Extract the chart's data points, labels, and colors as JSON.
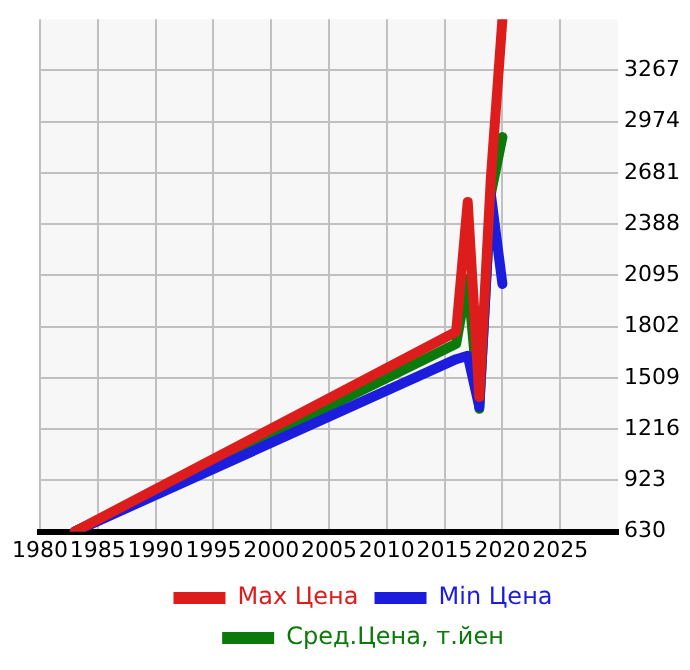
{
  "chart_data": {
    "type": "line",
    "x": [
      1983,
      2016,
      2017,
      2018,
      2019,
      2020
    ],
    "series": [
      {
        "name": "Max Цена",
        "color": "#dd1c1c",
        "values": [
          630,
          1773,
          2515,
          1400,
          2650,
          3560
        ]
      },
      {
        "name": "Min Цена",
        "color": "#1c1cdd",
        "values": [
          630,
          1616,
          1636,
          1343,
          2560,
          2046
        ]
      },
      {
        "name": "Сред.Цена, т.йен",
        "color": "#0b7a0b",
        "values": [
          630,
          1704,
          2076,
          1333,
          2560,
          2886
        ]
      }
    ],
    "xlim": [
      1980,
      2030
    ],
    "xticks": [
      1980,
      1985,
      1990,
      1995,
      2000,
      2005,
      2010,
      2015,
      2020,
      2025
    ],
    "ylim": [
      630,
      3560
    ],
    "yticks": [
      630,
      923,
      1216,
      1509,
      1802,
      2095,
      2388,
      2681,
      2974,
      3267
    ],
    "grid": true,
    "legend": "bottom",
    "marker": "none"
  }
}
